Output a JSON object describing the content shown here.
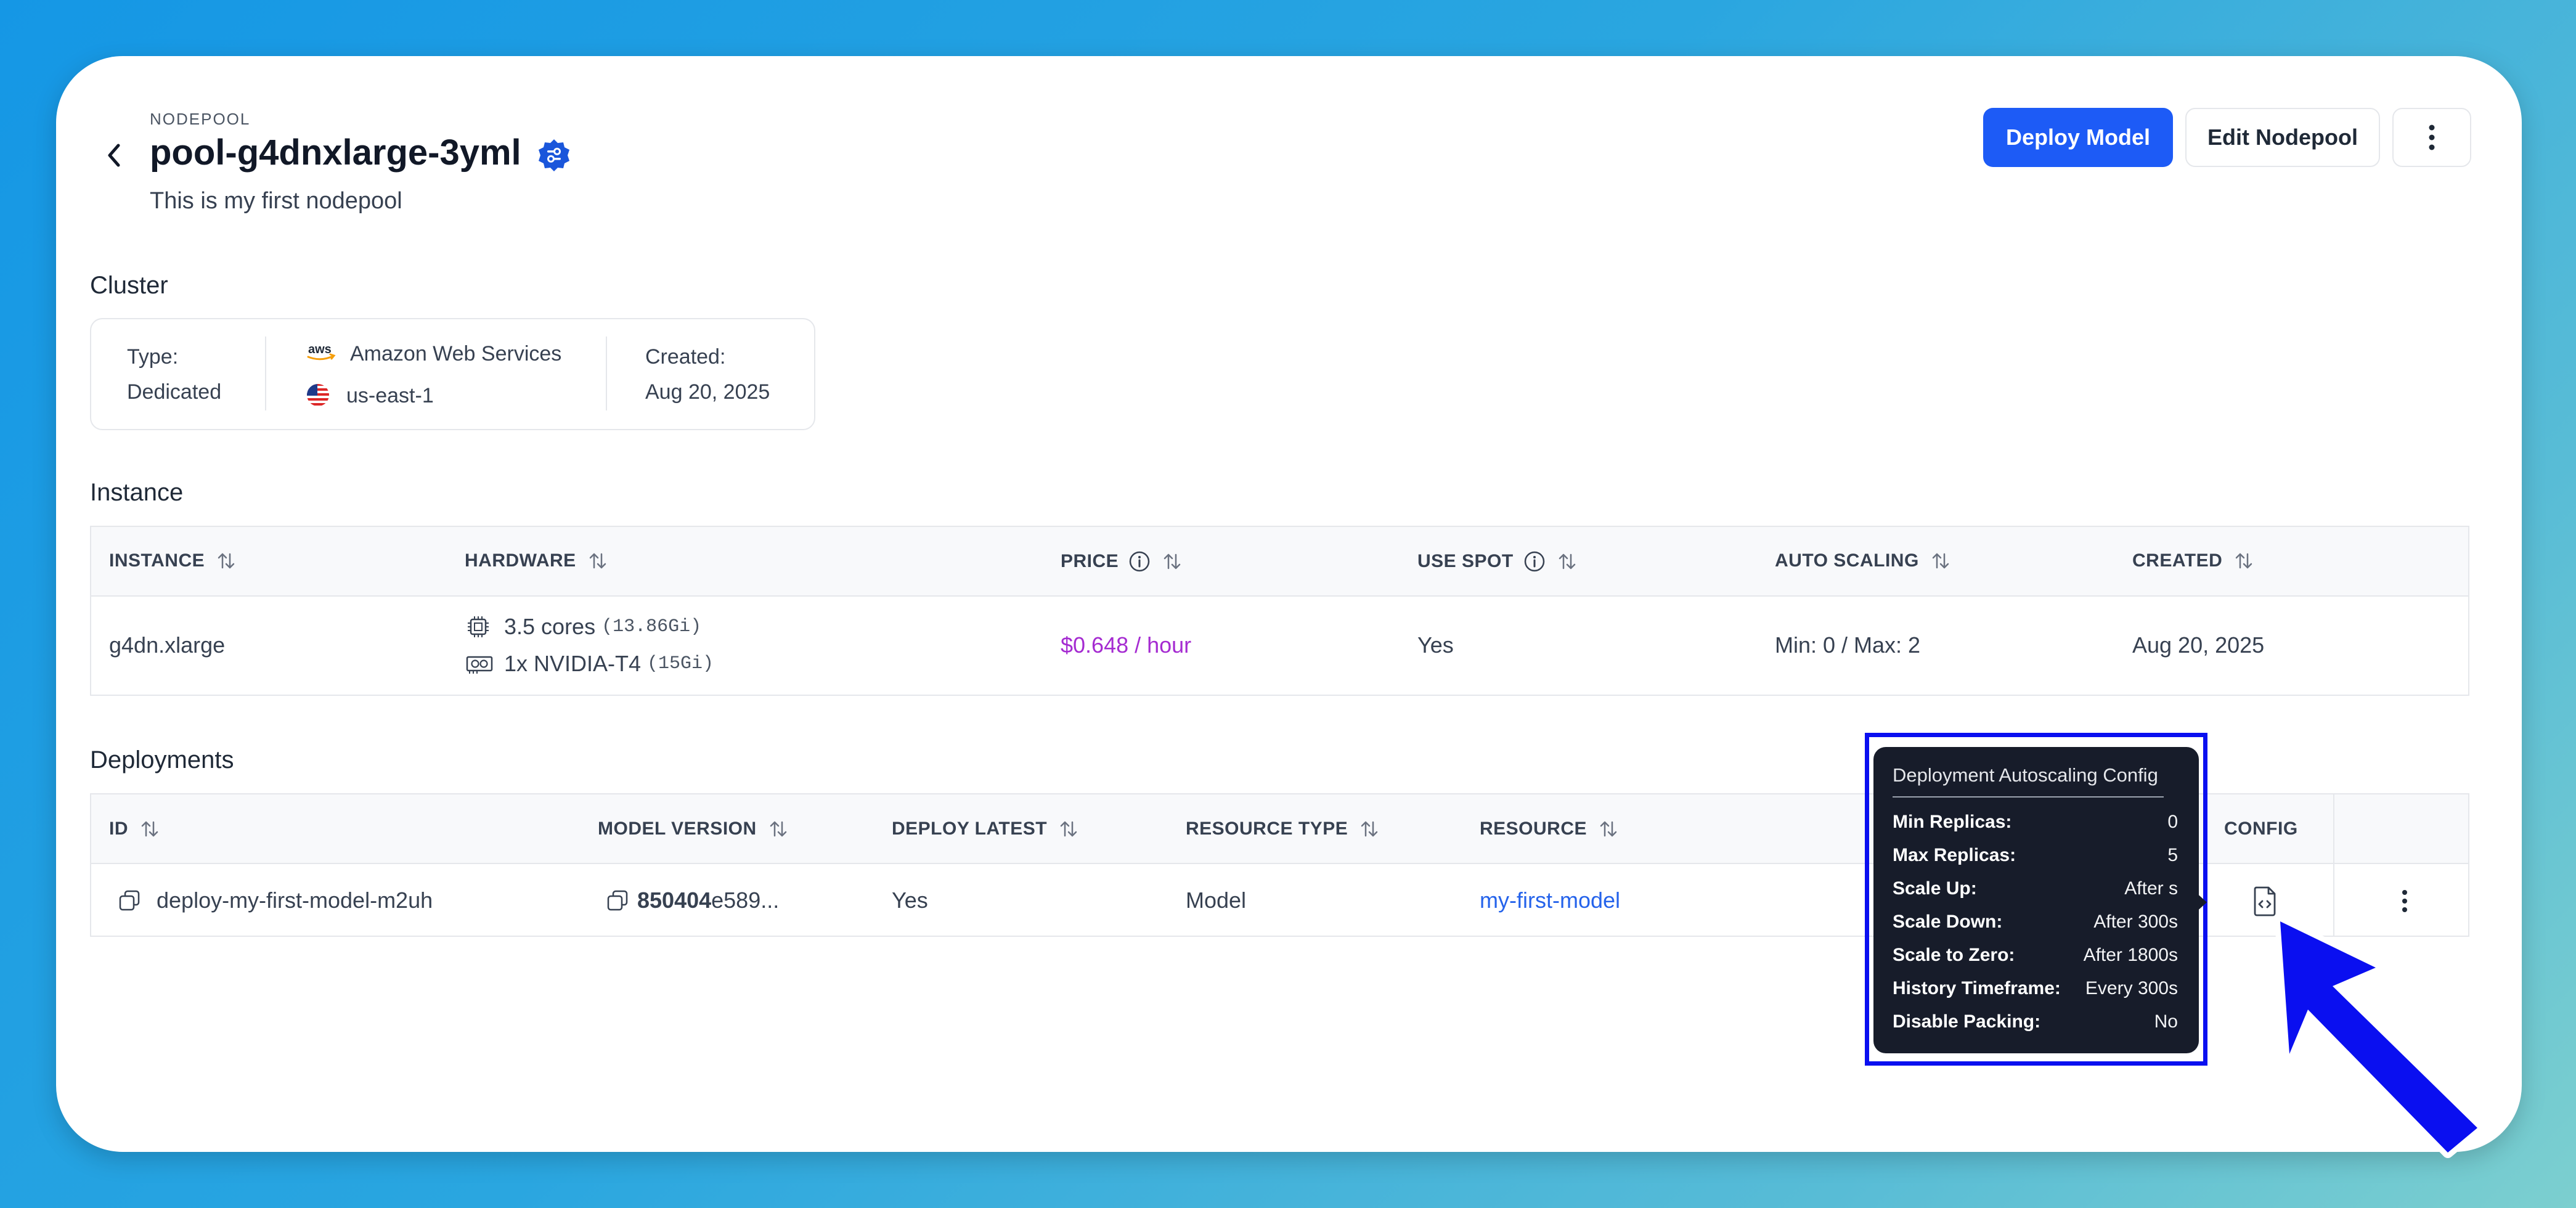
{
  "header": {
    "eyebrow": "NODEPOOL",
    "title": "pool-g4dnxlarge-3yml",
    "description": "This is my first nodepool",
    "deploy_label": "Deploy Model",
    "edit_label": "Edit Nodepool"
  },
  "cluster": {
    "section_title": "Cluster",
    "type_label": "Type:",
    "type_value": "Dedicated",
    "provider": "Amazon Web Services",
    "provider_logo_text": "aws",
    "region": "us-east-1",
    "created_label": "Created:",
    "created_value": "Aug 20, 2025"
  },
  "instance": {
    "section_title": "Instance",
    "columns": [
      "INSTANCE",
      "HARDWARE",
      "PRICE",
      "USE SPOT",
      "AUTO SCALING",
      "CREATED"
    ],
    "row": {
      "instance": "g4dn.xlarge",
      "cpu": "3.5 cores",
      "cpu_mem": "(13.86Gi)",
      "gpu": "1x NVIDIA-T4",
      "gpu_mem": "(15Gi)",
      "price": "$0.648 / hour",
      "use_spot": "Yes",
      "auto_scaling": "Min: 0 / Max: 2",
      "created": "Aug 20, 2025"
    }
  },
  "deployments": {
    "section_title": "Deployments",
    "columns": [
      "ID",
      "MODEL VERSION",
      "DEPLOY LATEST",
      "RESOURCE TYPE",
      "RESOURCE",
      "CONFIG"
    ],
    "row": {
      "id": "deploy-my-first-model-m2uh",
      "model_version_bold": "850404",
      "model_version_rest": "e589...",
      "deploy_latest": "Yes",
      "resource_type": "Model",
      "resource": "my-first-model"
    }
  },
  "tooltip": {
    "title": "Deployment Autoscaling Config",
    "rows": [
      {
        "k": "Min Replicas:",
        "v": "0"
      },
      {
        "k": "Max Replicas:",
        "v": "5"
      },
      {
        "k": "Scale Up:",
        "v": "After s"
      },
      {
        "k": "Scale Down:",
        "v": "After 300s"
      },
      {
        "k": "Scale to Zero:",
        "v": "After 1800s"
      },
      {
        "k": "History Timeframe:",
        "v": "Every 300s"
      },
      {
        "k": "Disable Packing:",
        "v": "No"
      }
    ]
  },
  "colors": {
    "primary": "#1d5bf6",
    "price": "#a52bd1",
    "link": "#2563eb",
    "badge": "#1a56db",
    "annotation": "#0a0ff0"
  }
}
